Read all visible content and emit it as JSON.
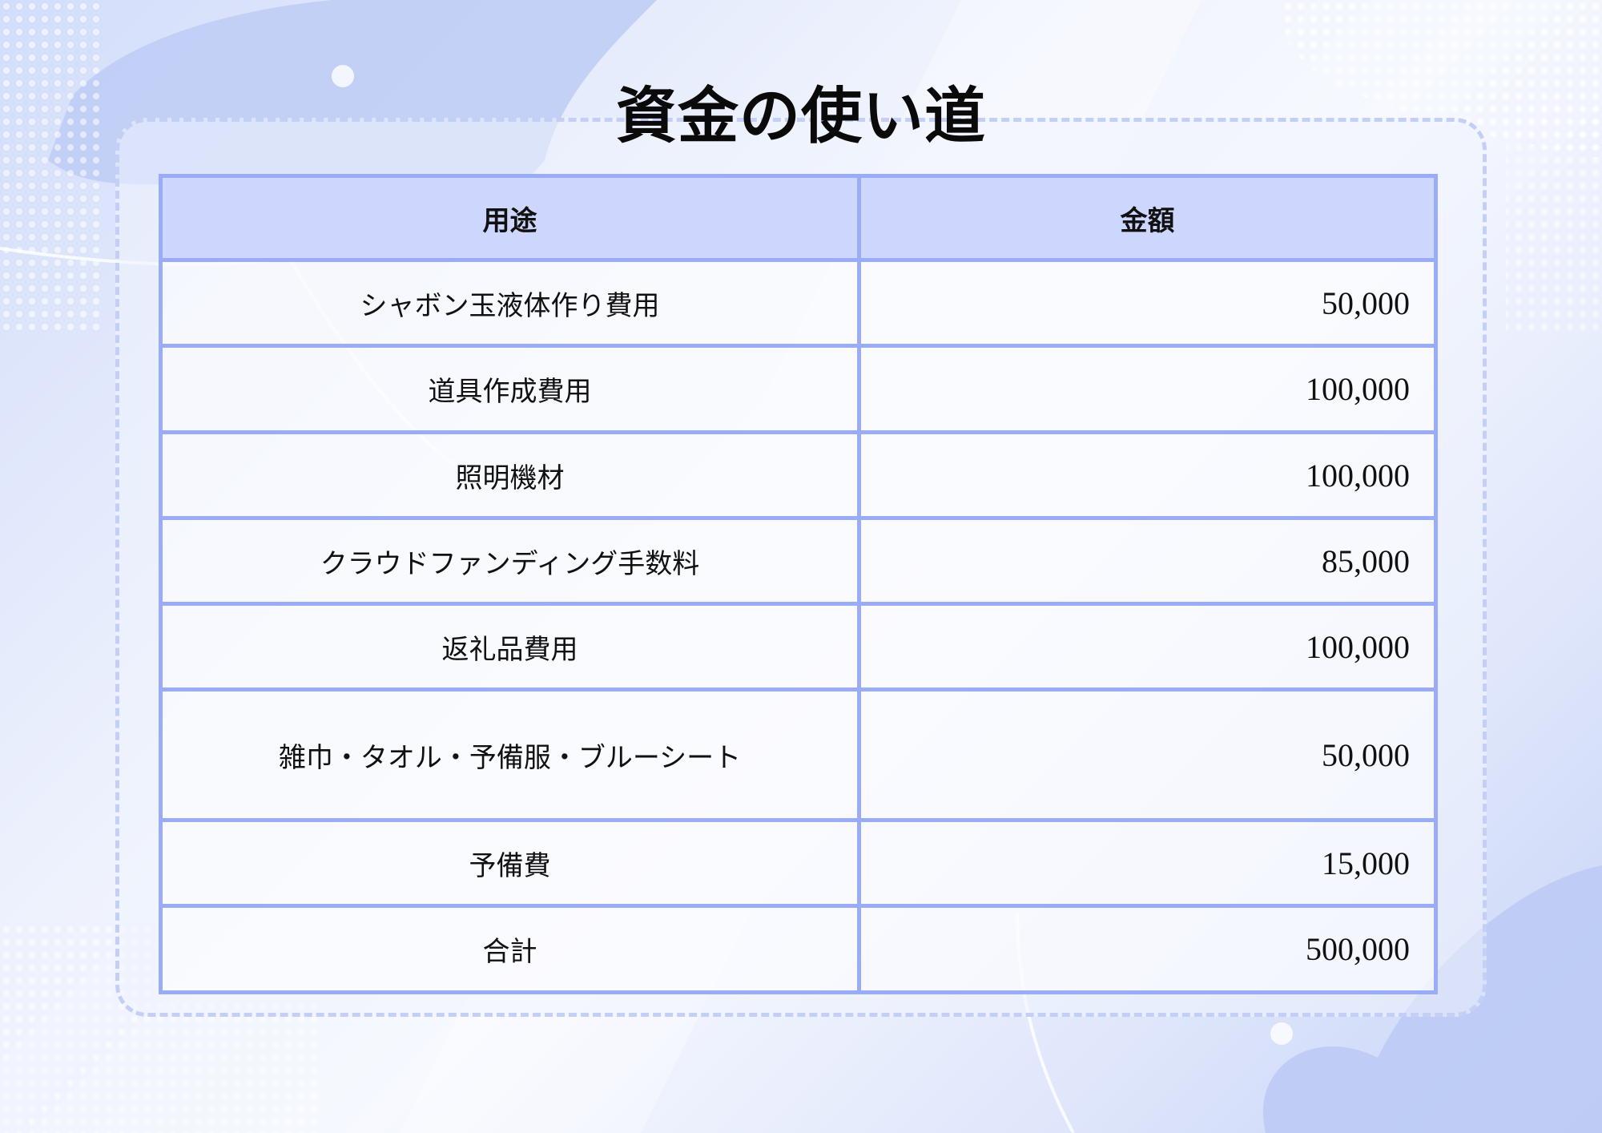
{
  "title": "資金の使い道",
  "table": {
    "headers": [
      "用途",
      "金額"
    ],
    "rows": [
      {
        "purpose": "シャボン玉液体作り費用",
        "amount": "50,000"
      },
      {
        "purpose": "道具作成費用",
        "amount": "100,000"
      },
      {
        "purpose": "照明機材",
        "amount": "100,000"
      },
      {
        "purpose": "クラウドファンディング手数料",
        "amount": "85,000"
      },
      {
        "purpose": "返礼品費用",
        "amount": "100,000"
      },
      {
        "purpose": "雑巾・タオル・予備服・ブルーシート",
        "amount": "50,000"
      },
      {
        "purpose": "予備費",
        "amount": "15,000"
      },
      {
        "purpose": "合計",
        "amount": "500,000"
      }
    ]
  },
  "colors": {
    "border": "#9aabf8",
    "header_bg": "#cdd6fc",
    "accent": "#c3cff5"
  }
}
